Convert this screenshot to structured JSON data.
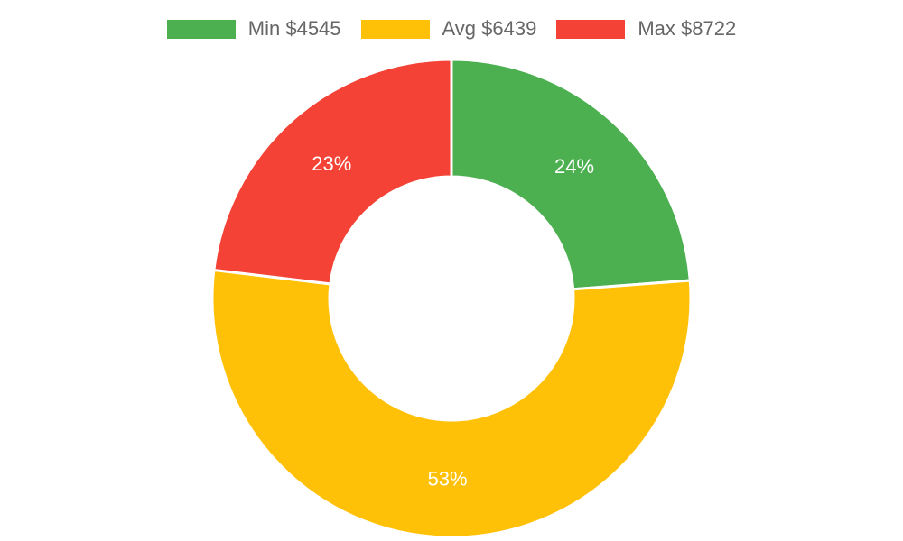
{
  "chart_data": {
    "type": "pie",
    "variant": "doughnut",
    "categories": [
      "Min $4545",
      "Avg $6439",
      "Max $8722"
    ],
    "values": [
      23.8,
      53.1,
      23.1
    ],
    "percent_labels": [
      "24%",
      "53%",
      "23%"
    ],
    "colors": [
      "#4caf50",
      "#ffc107",
      "#f44336"
    ],
    "title": "",
    "legend": "top-center",
    "start_angle_deg": 0,
    "direction": "clockwise"
  }
}
